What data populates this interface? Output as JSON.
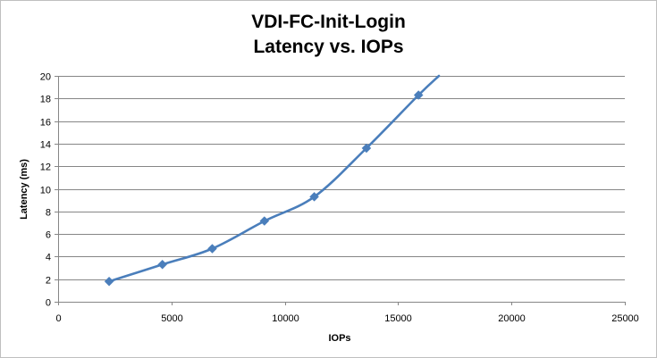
{
  "chart_data": {
    "type": "line",
    "title_lines": [
      "VDI-FC-Init-Login",
      "Latency vs. IOPs"
    ],
    "xlabel": "IOPs",
    "ylabel": "Latency (ms)",
    "xlim": [
      0,
      25000
    ],
    "ylim": [
      0,
      20
    ],
    "x_ticks": [
      0,
      5000,
      10000,
      15000,
      20000,
      25000
    ],
    "y_ticks": [
      0,
      2,
      4,
      6,
      8,
      10,
      12,
      14,
      16,
      18,
      20
    ],
    "grid": "horizontal",
    "legend": "none",
    "series": [
      {
        "color": "#4a7ebb",
        "marker": "diamond",
        "points": [
          {
            "x": 2250,
            "y": 1.8
          },
          {
            "x": 4600,
            "y": 3.3
          },
          {
            "x": 6800,
            "y": 4.7
          },
          {
            "x": 9100,
            "y": 7.15
          },
          {
            "x": 11300,
            "y": 9.3
          },
          {
            "x": 13600,
            "y": 13.6
          },
          {
            "x": 15900,
            "y": 18.3
          }
        ],
        "continues_to": {
          "x": 16800,
          "y": 20
        }
      }
    ]
  }
}
